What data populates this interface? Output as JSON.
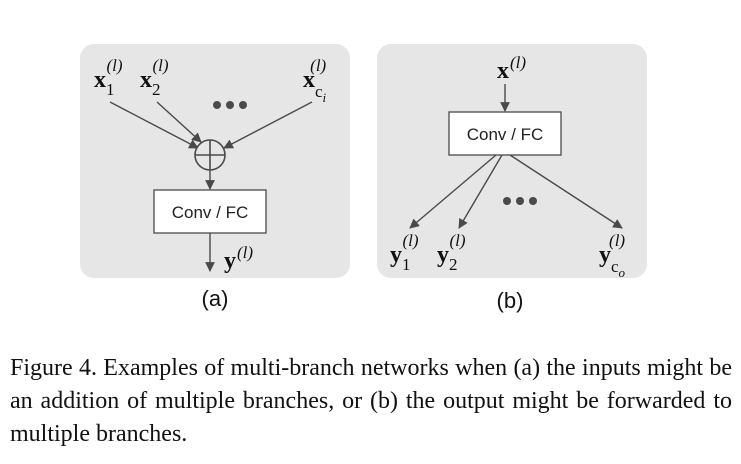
{
  "panel_a": {
    "label": "(a)",
    "box_label": "Conv / FC",
    "inputs": [
      {
        "var": "x",
        "sub": "1",
        "sup": "(l)"
      },
      {
        "var": "x",
        "sub": "2",
        "sup": "(l)"
      },
      {
        "var": "x",
        "sub": "c",
        "sub2": "i",
        "sup": "(l)"
      }
    ],
    "output": {
      "var": "y",
      "sup": "(l)"
    }
  },
  "panel_b": {
    "label": "(b)",
    "box_label": "Conv / FC",
    "input": {
      "var": "x",
      "sup": "(l)"
    },
    "outputs": [
      {
        "var": "y",
        "sub": "1",
        "sup": "(l)"
      },
      {
        "var": "y",
        "sub": "2",
        "sup": "(l)"
      },
      {
        "var": "y",
        "sub": "c",
        "sub2": "o",
        "sup": "(l)"
      }
    ]
  },
  "caption": "Figure 4. Examples of multi-branch networks when (a) the inputs might be an addition of multiple branches, or (b) the output might be forwarded to multiple branches."
}
